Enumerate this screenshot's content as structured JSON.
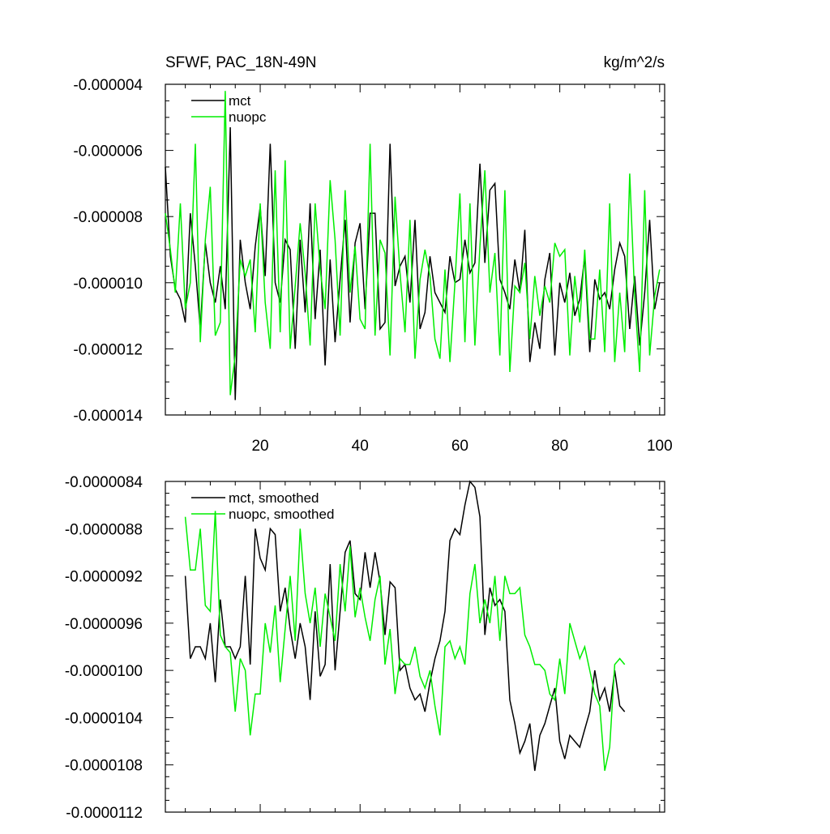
{
  "chart_data": [
    {
      "type": "line",
      "title_left": "SFWF, PAC_18N-49N",
      "title_right": "kg/m^2/s",
      "xlim": [
        1,
        101
      ],
      "ylim": [
        -1.4e-05,
        -4e-06
      ],
      "x_ticks": [
        20,
        40,
        60,
        80,
        100
      ],
      "x_tick_labels": [
        "20",
        "40",
        "60",
        "80",
        "100"
      ],
      "y_ticks": [
        -4e-06,
        -6e-06,
        -8e-06,
        -1e-05,
        -1.2e-05,
        -1.4e-05
      ],
      "y_tick_labels": [
        "-0.000004",
        "-0.000006",
        "-0.000008",
        "-0.000010",
        "-0.000012",
        "-0.000014"
      ],
      "legend": "top-left",
      "series": [
        {
          "name": "mct",
          "color": "#000000",
          "x_start": 1,
          "values": [
            -6.5e-06,
            -9.2e-06,
            -1.02e-05,
            -1.05e-05,
            -1.12e-05,
            -7.9e-06,
            -9.5e-06,
            -1.14e-05,
            -8.8e-06,
            -1e-05,
            -1.06e-05,
            -9.5e-06,
            -1.08e-05,
            -5.3e-06,
            -1.355e-05,
            -8.7e-06,
            -1e-05,
            -1.08e-05,
            -8.9e-06,
            -7.7e-06,
            -9.8e-06,
            -5.8e-06,
            -1e-05,
            -1.06e-05,
            -8.7e-06,
            -9e-06,
            -1.2e-05,
            -8.7e-06,
            -1.09e-05,
            -7.6e-06,
            -1.11e-05,
            -9e-06,
            -1.25e-05,
            -9.3e-06,
            -1.18e-05,
            -9.9e-06,
            -8.1e-06,
            -1.12e-05,
            -8.8e-06,
            -8.2e-06,
            -1.08e-05,
            -7.9e-06,
            -7.9e-06,
            -1.14e-05,
            -1.12e-05,
            -5.8e-06,
            -1.01e-05,
            -9.5e-06,
            -9.2e-06,
            -1.06e-05,
            -8.1e-06,
            -1.14e-05,
            -1.09e-05,
            -9.2e-06,
            -1.03e-05,
            -1.06e-05,
            -1.09e-05,
            -9.2e-06,
            -1e-05,
            -9.9e-06,
            -8.7e-06,
            -9.7e-06,
            -9.4e-06,
            -6.4e-06,
            -9.4e-06,
            -7.2e-06,
            -7e-06,
            -9.9e-06,
            -1.03e-05,
            -1.08e-05,
            -9.3e-06,
            -1.03e-05,
            -8.4e-06,
            -1.24e-05,
            -1.12e-05,
            -1.2e-05,
            -9.9e-06,
            -9.1e-06,
            -1.22e-05,
            -1e-05,
            -1.06e-05,
            -9.7e-06,
            -1.1e-05,
            -1.05e-05,
            -9.2e-06,
            -1.21e-05,
            -9.9e-06,
            -1.05e-05,
            -1.03e-05,
            -1.08e-05,
            -9.6e-06,
            -8.8e-06,
            -9.2e-06,
            -1.14e-05,
            -9.8e-06,
            -1.19e-05,
            -1.03e-05,
            -8.1e-06,
            -1.08e-05,
            -1e-05
          ]
        },
        {
          "name": "nuopc",
          "color": "#00ee00",
          "x_start": 1,
          "values": [
            -7.9e-06,
            -9e-06,
            -1.03e-05,
            -7.6e-06,
            -1.08e-05,
            -1e-05,
            -5.8e-06,
            -1.18e-05,
            -8.7e-06,
            -7.1e-06,
            -1.16e-05,
            -1.12e-05,
            -4.2e-06,
            -1.34e-05,
            -1.22e-05,
            -9.3e-06,
            -9.8e-06,
            -9.3e-06,
            -1.15e-05,
            -7.6e-06,
            -1.06e-05,
            -1.2e-05,
            -6.6e-06,
            -1.15e-05,
            -6.3e-06,
            -1.2e-05,
            -1.01e-05,
            -8.2e-06,
            -9.7e-06,
            -1.19e-05,
            -7.6e-06,
            -9.6e-06,
            -1.08e-05,
            -6.9e-06,
            -8.7e-06,
            -1.16e-05,
            -7.2e-06,
            -1.03e-05,
            -8.9e-06,
            -1.11e-05,
            -1.14e-05,
            -5.8e-06,
            -1.16e-05,
            -8.7e-06,
            -9.1e-06,
            -1.22e-05,
            -7.4e-06,
            -9.7e-06,
            -1.15e-05,
            -8.1e-06,
            -1.23e-05,
            -9.9e-06,
            -9e-06,
            -9.8e-06,
            -1.17e-05,
            -1.23e-05,
            -9.6e-06,
            -1.24e-05,
            -1e-05,
            -7.3e-06,
            -1.18e-05,
            -7.6e-06,
            -1.19e-05,
            -8.9e-06,
            -6.6e-06,
            -1.03e-05,
            -9.1e-06,
            -1.22e-05,
            -7.2e-06,
            -1.27e-05,
            -1.01e-05,
            -1.03e-05,
            -9.4e-06,
            -1.17e-05,
            -9.8e-06,
            -1.1e-05,
            -1.01e-05,
            -1.06e-05,
            -8.8e-06,
            -9.2e-06,
            -9e-06,
            -1.22e-05,
            -9.8e-06,
            -1.12e-05,
            -9e-06,
            -1.17e-05,
            -1.17e-05,
            -9.6e-06,
            -1.21e-05,
            -7.6e-06,
            -1.24e-05,
            -1.03e-05,
            -1.21e-05,
            -6.7e-06,
            -1.04e-05,
            -1.27e-05,
            -7.2e-06,
            -1.22e-05,
            -1.04e-05,
            -9.6e-06
          ]
        }
      ]
    },
    {
      "type": "line",
      "xlim": [
        1,
        101
      ],
      "ylim": [
        -1.12e-05,
        -8.4e-06
      ],
      "x_ticks": [
        20,
        40,
        60,
        80,
        100
      ],
      "y_ticks": [
        -8.4e-06,
        -8.8e-06,
        -9.2e-06,
        -9.6e-06,
        -1e-05,
        -1.04e-05,
        -1.08e-05,
        -1.12e-05
      ],
      "y_tick_labels": [
        "-0.0000084",
        "-0.0000088",
        "-0.0000092",
        "-0.0000096",
        "-0.0000100",
        "-0.0000104",
        "-0.0000108",
        "-0.0000112"
      ],
      "legend": "top-left",
      "series": [
        {
          "name": "mct, smoothed",
          "color": "#000000",
          "x_start": 5,
          "values": [
            -9.2e-06,
            -9.9e-06,
            -9.8e-06,
            -9.8e-06,
            -9.9e-06,
            -9.6e-06,
            -1.01e-05,
            -9.4e-06,
            -9.8e-06,
            -9.8e-06,
            -9.9e-06,
            -9.8e-06,
            -9.2e-06,
            -9.95e-06,
            -8.8e-06,
            -9.05e-06,
            -9.15e-06,
            -8.8e-06,
            -8.85e-06,
            -9.5e-06,
            -9.3e-06,
            -9.65e-06,
            -9.9e-06,
            -9.6e-06,
            -9.8e-06,
            -1.025e-05,
            -9.5e-06,
            -1.005e-05,
            -9.95e-06,
            -9.1e-06,
            -1e-05,
            -9.5e-06,
            -9e-06,
            -8.9e-06,
            -9.35e-06,
            -9.4e-06,
            -9e-06,
            -9.3e-06,
            -9e-06,
            -9.25e-06,
            -9.7e-06,
            -9.25e-06,
            -9.3e-06,
            -1e-05,
            -9.95e-06,
            -1.015e-05,
            -1.025e-05,
            -1.02e-05,
            -1.035e-05,
            -1.01e-05,
            -9.9e-06,
            -9.75e-06,
            -9.5e-06,
            -8.9e-06,
            -8.8e-06,
            -8.85e-06,
            -8.6e-06,
            -8.4e-06,
            -8.45e-06,
            -8.7e-06,
            -9.7e-06,
            -9.3e-06,
            -9.45e-06,
            -9.4e-06,
            -9.5e-06,
            -1.025e-05,
            -1.045e-05,
            -1.07e-05,
            -1.06e-05,
            -1.045e-05,
            -1.085e-05,
            -1.055e-05,
            -1.045e-05,
            -1.03e-05,
            -1.015e-05,
            -1.06e-05,
            -1.075e-05,
            -1.055e-05,
            -1.06e-05,
            -1.065e-05,
            -1.05e-05,
            -1.035e-05,
            -1e-05,
            -1.025e-05,
            -1.015e-05,
            -1.035e-05,
            -1e-05,
            -1.03e-05,
            -1.035e-05
          ]
        },
        {
          "name": "nuopc, smoothed",
          "color": "#00ee00",
          "x_start": 5,
          "values": [
            -8.7e-06,
            -9.15e-06,
            -9.15e-06,
            -8.8e-06,
            -9.45e-06,
            -9.5e-06,
            -8.65e-06,
            -9.7e-06,
            -9.8e-06,
            -9.85e-06,
            -1.035e-05,
            -9.9e-06,
            -1e-05,
            -1.055e-05,
            -1.02e-05,
            -1.02e-05,
            -9.6e-06,
            -9.85e-06,
            -9.45e-06,
            -1.01e-05,
            -9.65e-06,
            -9.2e-06,
            -9.75e-06,
            -8.8e-06,
            -9.35e-06,
            -9.6e-06,
            -9.3e-06,
            -9.8e-06,
            -9.35e-06,
            -9.55e-06,
            -9.75e-06,
            -9.1e-06,
            -9.5e-06,
            -8.95e-06,
            -9.55e-06,
            -9.3e-06,
            -9.55e-06,
            -9.75e-06,
            -9.4e-06,
            -9.2e-06,
            -9.95e-06,
            -9.65e-06,
            -1.02e-05,
            -9.9e-06,
            -9.95e-06,
            -9.95e-06,
            -9.8e-06,
            -1.005e-05,
            -1.015e-05,
            -1e-05,
            -1.03e-05,
            -1.055e-05,
            -9.8e-06,
            -9.75e-06,
            -9.9e-06,
            -9.8e-06,
            -9.95e-06,
            -9.35e-06,
            -9.1e-06,
            -9.6e-06,
            -9.4e-06,
            -9.6e-06,
            -9.2e-06,
            -9.75e-06,
            -9.2e-06,
            -9.35e-06,
            -9.35e-06,
            -9.3e-06,
            -9.7e-06,
            -9.8e-06,
            -9.95e-06,
            -9.95e-06,
            -1e-05,
            -1.02e-05,
            -1.025e-05,
            -9.9e-06,
            -1.02e-05,
            -9.6e-06,
            -9.75e-06,
            -9.9e-06,
            -9.8e-06,
            -1e-05,
            -1.02e-05,
            -1.03e-05,
            -1.085e-05,
            -1.065e-05,
            -9.95e-06,
            -9.9e-06,
            -9.95e-06
          ]
        }
      ]
    }
  ]
}
